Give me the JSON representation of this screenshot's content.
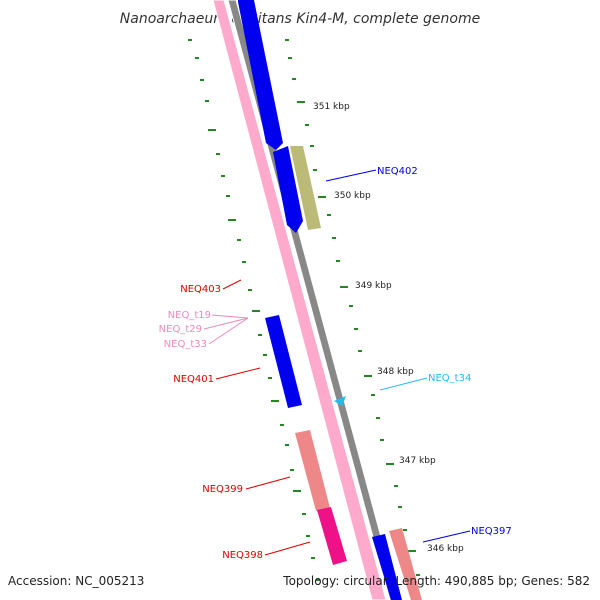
{
  "title": "Nanoarchaeum equitans Kin4-M, complete genome",
  "footer": {
    "accession": "Accession: NC_005213",
    "topology": "Topology: circular; Length: 490,885 bp; Genes: 582"
  },
  "kbp_labels": [
    "351 kbp",
    "350 kbp",
    "349 kbp",
    "348 kbp",
    "347 kbp",
    "346 kbp"
  ],
  "gene_labels": {
    "neq402": "NEQ402",
    "neq403": "NEQ403",
    "neq_t19": "NEQ_t19",
    "neq_t29": "NEQ_t29",
    "neq_t33": "NEQ_t33",
    "neq401": "NEQ401",
    "neq_t34": "NEQ_t34",
    "neq399": "NEQ399",
    "neq397": "NEQ397",
    "neq398": "NEQ398"
  },
  "colors": {
    "forward_cds": "#0000ee",
    "reverse_cds": "#dd0000",
    "trna": "#ee88bb",
    "trna_marker": "#22bbee",
    "other_feature": "#bbbb77",
    "salmon_feature": "#ee8888",
    "magenta_feature": "#ee1188",
    "backbone_pink": "#ffaacc",
    "backbone_gray": "#888888",
    "ticks": "#228822"
  }
}
